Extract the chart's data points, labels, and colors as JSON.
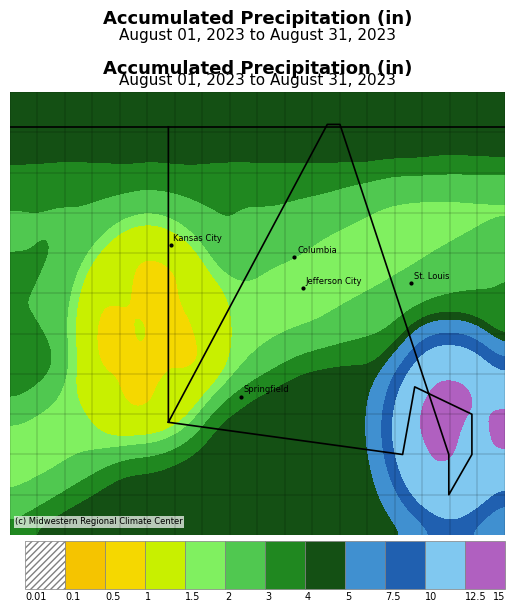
{
  "title": "Accumulated Precipitation (in)",
  "subtitle": "August 01, 2023 to August 31, 2023",
  "colorbar_levels": [
    0.01,
    0.1,
    0.5,
    1,
    1.5,
    2,
    3,
    4,
    5,
    7.5,
    10,
    12.5,
    15
  ],
  "colorbar_colors": [
    "#c8c8c8",
    "#f5c400",
    "#f5d800",
    "#c8f000",
    "#80f060",
    "#50c850",
    "#208820",
    "#145014",
    "#4090d0",
    "#2060b0",
    "#80c8f0",
    "#b060c0"
  ],
  "colorbar_labels": [
    "0.01",
    "0.1",
    "0.5",
    "1",
    "1.5",
    "2",
    "3",
    "4",
    "5",
    "7.5",
    "10",
    "12.5",
    "15"
  ],
  "map_extent": [
    -97.5,
    -88.5,
    35.5,
    41.0
  ],
  "cities": [
    {
      "name": "Kansas City",
      "lon": -94.58,
      "lat": 39.1
    },
    {
      "name": "Columbia",
      "lon": -92.33,
      "lat": 38.95
    },
    {
      "name": "Jefferson City",
      "lon": -92.17,
      "lat": 38.57
    },
    {
      "name": "St. Louis",
      "lon": -90.2,
      "lat": 38.63
    },
    {
      "name": "Springfield",
      "lon": -93.3,
      "lat": 37.22
    }
  ],
  "credit": "(c) Midwestern Regional Climate Center",
  "fig_width": 5.05,
  "fig_height": 6.0,
  "dpi": 100
}
